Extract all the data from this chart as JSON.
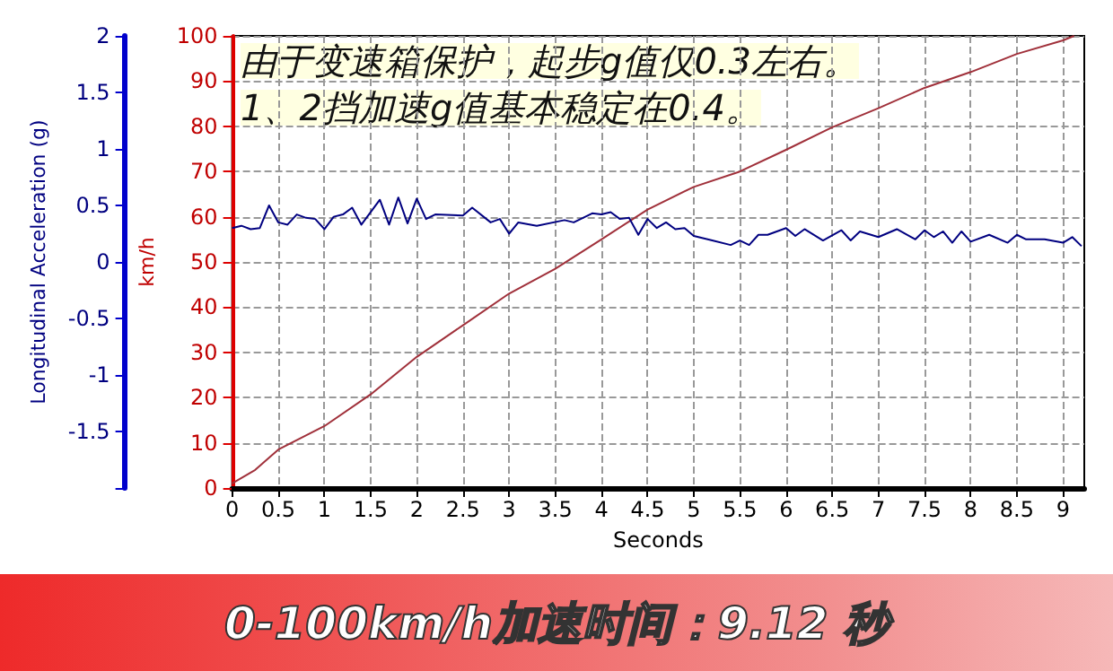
{
  "chart_data": {
    "type": "line",
    "title": "0-100km/h加速时间：9.12 秒",
    "xlabel": "Seconds",
    "ylabel": "km/h",
    "y2label": "Longitudinal Acceleration (g)",
    "annotations": [
      "由于变速箱保护，起步g值仅0.3左右。",
      "1、2挡加速g值基本稳定在0.4。"
    ],
    "xlim": [
      0,
      9.23
    ],
    "xticks": [
      0,
      0.5,
      1,
      1.5,
      2,
      2.5,
      3,
      3.5,
      4,
      4.5,
      5,
      5.5,
      6,
      6.5,
      7,
      7.5,
      8,
      8.5,
      9
    ],
    "ylim": [
      0,
      100
    ],
    "yticks": [
      0,
      10,
      20,
      30,
      40,
      50,
      60,
      70,
      80,
      90,
      100
    ],
    "y2lim": [
      -2,
      2
    ],
    "y2ticks": [
      {
        "value": -2,
        "label": null
      },
      -1.5,
      -1,
      -0.5,
      0,
      0.5,
      1,
      1.5,
      2
    ],
    "grid": true,
    "marker": "none",
    "line_style": "solid",
    "series": [
      {
        "color": "#a0303a",
        "x": [
          0,
          0.25,
          0.5,
          1,
          1.5,
          2,
          2.5,
          3,
          3.5,
          4,
          4.5,
          5,
          5.5,
          6,
          6.5,
          7,
          7.5,
          8,
          8.5,
          9,
          9.12
        ],
        "values": [
          1,
          4,
          8.5,
          13.7,
          20.7,
          29,
          36,
          43,
          48.5,
          55,
          61.6,
          66.6,
          70,
          74.8,
          79.8,
          84,
          88.5,
          92,
          96,
          99,
          100
        ]
      },
      {
        "color": "#000080",
        "axis": "y2",
        "x": [
          0,
          0.1,
          0.2,
          0.3,
          0.4,
          0.5,
          0.6,
          0.7,
          0.8,
          0.9,
          1.0,
          1.1,
          1.2,
          1.3,
          1.4,
          1.6,
          1.7,
          1.8,
          1.9,
          2.0,
          2.1,
          2.2,
          2.5,
          2.6,
          2.8,
          2.9,
          3.0,
          3.1,
          3.3,
          3.6,
          3.7,
          3.9,
          4.0,
          4.1,
          4.2,
          4.3,
          4.4,
          4.5,
          4.6,
          4.7,
          4.8,
          4.9,
          5.0,
          5.2,
          5.4,
          5.5,
          5.6,
          5.7,
          5.8,
          6.0,
          6.1,
          6.2,
          6.4,
          6.6,
          6.7,
          6.8,
          7.0,
          7.2,
          7.4,
          7.5,
          7.6,
          7.7,
          7.8,
          7.9,
          8.0,
          8.2,
          8.4,
          8.5,
          8.6,
          8.8,
          9.0,
          9.1,
          9.2
        ],
        "values": [
          0.3,
          0.32,
          0.29,
          0.3,
          0.5,
          0.35,
          0.33,
          0.42,
          0.39,
          0.38,
          0.29,
          0.4,
          0.42,
          0.48,
          0.33,
          0.55,
          0.33,
          0.57,
          0.34,
          0.56,
          0.38,
          0.42,
          0.41,
          0.48,
          0.35,
          0.38,
          0.25,
          0.35,
          0.32,
          0.37,
          0.35,
          0.43,
          0.42,
          0.44,
          0.38,
          0.39,
          0.24,
          0.38,
          0.3,
          0.35,
          0.29,
          0.3,
          0.23,
          0.19,
          0.15,
          0.19,
          0.15,
          0.24,
          0.24,
          0.3,
          0.23,
          0.29,
          0.19,
          0.28,
          0.19,
          0.27,
          0.22,
          0.29,
          0.2,
          0.28,
          0.22,
          0.27,
          0.17,
          0.27,
          0.18,
          0.24,
          0.17,
          0.24,
          0.2,
          0.2,
          0.17,
          0.22,
          0.14
        ]
      }
    ]
  }
}
